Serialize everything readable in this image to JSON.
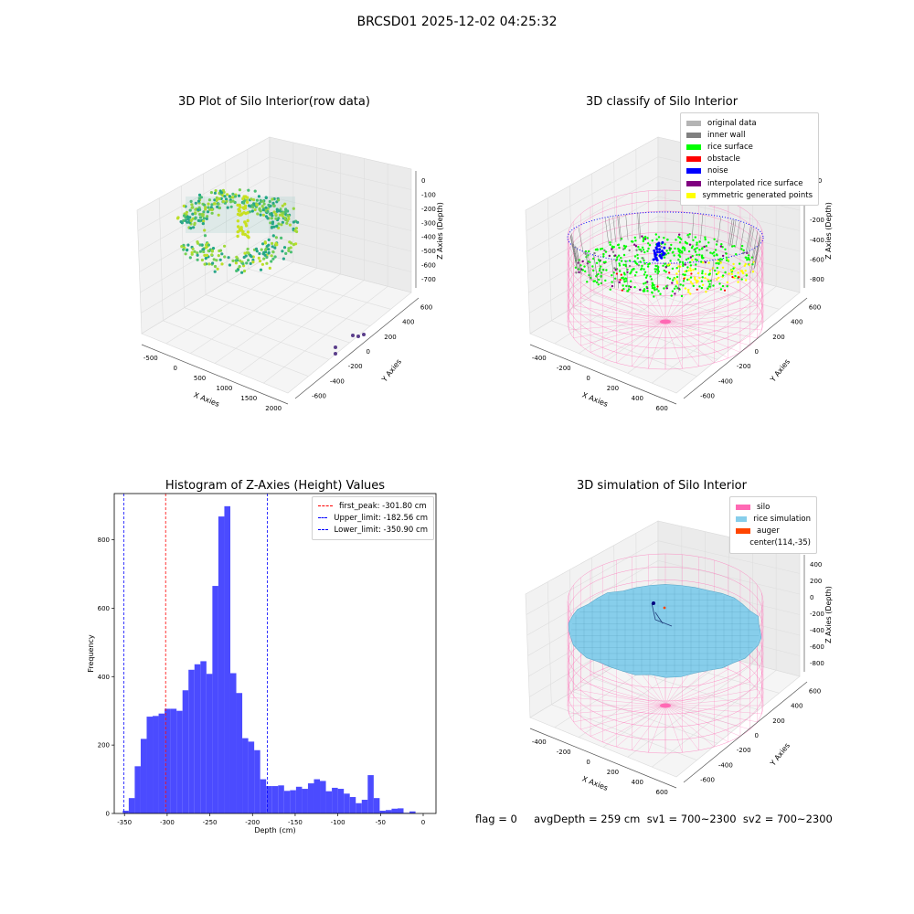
{
  "suptitle": "BRCSD01 2025-12-02 04:25:32",
  "panels": {
    "raw": {
      "title": "3D Plot of Silo Interior(row data)",
      "x_ticks": [
        "-500",
        "0",
        "500",
        "1000",
        "1500",
        "2000"
      ],
      "y_ticks": [
        "600",
        "400",
        "200",
        "0",
        "-200",
        "-400",
        "-600"
      ],
      "z_ticks": [
        "0",
        "-100",
        "-200",
        "-300",
        "-400",
        "-500",
        "-600",
        "-700"
      ],
      "xlabel": "X Axies",
      "ylabel": "Y Axies",
      "zlabel": "Z Axies (Depth)"
    },
    "classify": {
      "title": "3D classify of Silo Interior",
      "x_ticks": [
        "-400",
        "-200",
        "0",
        "200",
        "400",
        "600"
      ],
      "y_ticks": [
        "600",
        "400",
        "200",
        "0",
        "-200",
        "-400",
        "-600"
      ],
      "z_ticks": [
        "200",
        "0",
        "-200",
        "-400",
        "-600",
        "-800"
      ],
      "xlabel": "X Axies",
      "ylabel": "Y Axies",
      "zlabel": "Z Axies (Depth)",
      "legend": [
        {
          "label": "original data",
          "color": "#b4b4b4"
        },
        {
          "label": "inner wall",
          "color": "#808080"
        },
        {
          "label": "rice surface",
          "color": "#00ff00"
        },
        {
          "label": "obstacle",
          "color": "#ff0000"
        },
        {
          "label": "noise",
          "color": "#0000ff"
        },
        {
          "label": "interpolated rice surface",
          "color": "#800080"
        },
        {
          "label": "symmetric generated points",
          "color": "#ffff00"
        }
      ]
    },
    "simulation": {
      "title": "3D simulation of Silo Interior",
      "x_ticks": [
        "-400",
        "-200",
        "0",
        "200",
        "400",
        "600"
      ],
      "y_ticks": [
        "600",
        "400",
        "200",
        "0",
        "-200",
        "-400",
        "-600"
      ],
      "z_ticks": [
        "400",
        "200",
        "0",
        "-200",
        "-400",
        "-600",
        "-800"
      ],
      "xlabel": "X Axies",
      "ylabel": "Y Axies",
      "zlabel": "Z Axies (Depth)",
      "legend": [
        {
          "label": "silo",
          "color": "#ff69b4"
        },
        {
          "label": "rice simulation",
          "color": "#87ceeb"
        },
        {
          "label": "auger",
          "color": "#ff4500"
        },
        {
          "label": "center(114,-35)",
          "color": ""
        }
      ]
    }
  },
  "bottom_text": "flag = 0     avgDepth = 259 cm  sv1 = 700~2300  sv2 = 700~2300",
  "chart_data": [
    {
      "type": "bar",
      "title": "Histogram of Z-Axies (Height) Values",
      "xlabel": "Depth (cm)",
      "ylabel": "Frequency",
      "bar_color": "#4b4bff",
      "bin_start": -352,
      "bin_width": 7,
      "values": [
        8,
        45,
        138,
        218,
        283,
        285,
        292,
        306,
        306,
        300,
        360,
        420,
        436,
        445,
        408,
        665,
        868,
        898,
        410,
        352,
        220,
        210,
        185,
        100,
        80,
        80,
        82,
        66,
        68,
        78,
        72,
        88,
        100,
        95,
        65,
        75,
        72,
        58,
        48,
        30,
        40,
        112,
        45,
        8,
        10,
        14,
        15,
        2,
        6
      ],
      "xlim": [
        -362,
        15
      ],
      "ylim": [
        0,
        935
      ],
      "x_ticks": [
        -350,
        -300,
        -250,
        -200,
        -150,
        -100,
        -50,
        0
      ],
      "y_ticks": [
        0,
        200,
        400,
        600,
        800
      ],
      "vlines": [
        {
          "x": -301.8,
          "color": "#ff0000",
          "label": "first_peak: -301.80 cm"
        },
        {
          "x": -182.56,
          "color": "#0000ff",
          "label": "Upper_limit: -182.56 cm"
        },
        {
          "x": -350.9,
          "color": "#0000ff",
          "label": "Lower_limit: -350.90 cm"
        }
      ],
      "legend_position": "top-right"
    }
  ]
}
